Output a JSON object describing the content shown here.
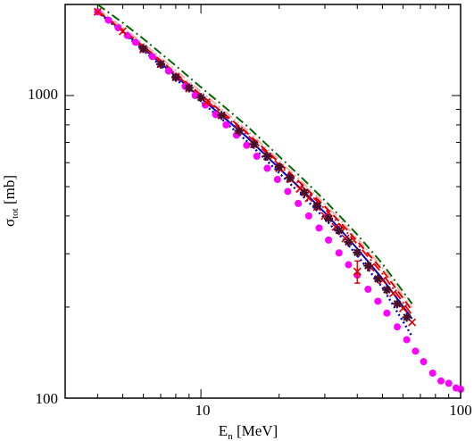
{
  "chart_data": {
    "type": "line",
    "x_scale": "log",
    "y_scale": "log",
    "xlim": [
      3,
      100
    ],
    "ylim": [
      100,
      2000
    ],
    "x_ticks": [
      10,
      100
    ],
    "y_ticks": [
      100,
      1000
    ],
    "x_tick_labels": [
      "10",
      "100"
    ],
    "y_tick_labels": [
      "100",
      "1000"
    ],
    "xlabel": {
      "main": "E",
      "sub": "n",
      "rest": " [MeV]"
    },
    "ylabel": {
      "main": "σ",
      "sub": "tot",
      "rest": " [mb]"
    },
    "grid": false,
    "legend": "none",
    "series": [
      {
        "style": "solid",
        "color": "#0000cc",
        "x": [
          4,
          5,
          6,
          7,
          8,
          10,
          12,
          15,
          20,
          25,
          30,
          35,
          40,
          50,
          65
        ],
        "y": [
          1900,
          1630,
          1430,
          1280,
          1160,
          980,
          860,
          730,
          575,
          480,
          410,
          355,
          312,
          248,
          183
        ]
      },
      {
        "style": "dotted",
        "color": "#0000cc",
        "x": [
          4,
          5,
          6,
          7,
          8,
          10,
          12,
          15,
          20,
          25,
          30,
          35,
          40,
          50,
          65
        ],
        "y": [
          1890,
          1615,
          1410,
          1255,
          1135,
          955,
          838,
          708,
          555,
          460,
          392,
          338,
          296,
          232,
          160
        ]
      },
      {
        "style": "dashed",
        "color": "#cc0000",
        "x": [
          4,
          5,
          6,
          7,
          8,
          10,
          12,
          15,
          20,
          25,
          30,
          35,
          40,
          50,
          65
        ],
        "y": [
          1910,
          1650,
          1455,
          1305,
          1185,
          1005,
          885,
          755,
          600,
          500,
          430,
          375,
          330,
          265,
          195
        ]
      },
      {
        "style": "dash-dot",
        "color": "#ff0000",
        "x": [
          4,
          5,
          6,
          7,
          8,
          10,
          12,
          15,
          20,
          25,
          30,
          35,
          40,
          50,
          65
        ],
        "y": [
          1905,
          1640,
          1445,
          1295,
          1175,
          995,
          875,
          745,
          590,
          492,
          422,
          367,
          323,
          258,
          188
        ]
      },
      {
        "style": "dash-dot",
        "color": "#006600",
        "x": [
          4,
          5,
          6,
          7,
          8,
          10,
          12,
          15,
          20,
          25,
          30,
          35,
          40,
          50,
          65
        ],
        "y": [
          2000,
          1740,
          1540,
          1380,
          1255,
          1065,
          935,
          795,
          630,
          525,
          450,
          392,
          347,
          278,
          205
        ]
      },
      {
        "style": "dash-dot-dot",
        "color": "#ffaaaa",
        "x": [
          4,
          5,
          6,
          7,
          8,
          10,
          12,
          15,
          20,
          25,
          30,
          35,
          40,
          50,
          65
        ],
        "y": [
          1940,
          1680,
          1485,
          1335,
          1210,
          1030,
          905,
          770,
          612,
          510,
          438,
          381,
          337,
          270,
          199
        ]
      },
      {
        "style": "markers",
        "marker": "circle",
        "color": "#ff00ff",
        "x": [
          4,
          4.4,
          4.8,
          5.2,
          5.6,
          6,
          6.5,
          7,
          7.5,
          8,
          8.7,
          9.5,
          10.4,
          11.4,
          12.5,
          13.7,
          15,
          16.4,
          18,
          19.7,
          21.6,
          23.7,
          26,
          28.5,
          31,
          34,
          37,
          40,
          44,
          48,
          52,
          57,
          62,
          67,
          72,
          78,
          84,
          90,
          96,
          100
        ],
        "y": [
          1890,
          1775,
          1675,
          1580,
          1500,
          1425,
          1345,
          1270,
          1205,
          1145,
          1072,
          1000,
          930,
          865,
          800,
          740,
          685,
          630,
          575,
          528,
          482,
          440,
          400,
          365,
          333,
          302,
          276,
          255,
          229,
          209,
          191,
          172,
          156,
          143,
          132,
          121,
          114,
          112,
          108,
          107
        ]
      },
      {
        "style": "markers",
        "marker": "x",
        "color": "#dd0000",
        "x": [
          4,
          5,
          6,
          7,
          8,
          9,
          10.5,
          12,
          14,
          16,
          18,
          20,
          22,
          24,
          26,
          28,
          30,
          33,
          36,
          40,
          45,
          50,
          55,
          60,
          65
        ],
        "y": [
          1890,
          1630,
          1420,
          1270,
          1150,
          1055,
          950,
          860,
          765,
          690,
          630,
          575,
          530,
          492,
          458,
          428,
          400,
          368,
          337,
          262,
          270,
          245,
          222,
          198,
          178
        ],
        "err": [
          0,
          0,
          0,
          0,
          0,
          0,
          0,
          0,
          0,
          0,
          0,
          0,
          0,
          0,
          0,
          0,
          0,
          0,
          0,
          22,
          0,
          0,
          0,
          0,
          0
        ]
      },
      {
        "style": "markers",
        "marker": "plus",
        "color": "#4a0f2a",
        "x": [
          6,
          7,
          8,
          9,
          10,
          12,
          14,
          16,
          18,
          20,
          22,
          25,
          28,
          31,
          34,
          37,
          40,
          44,
          48,
          52,
          57,
          62
        ],
        "y": [
          1430,
          1270,
          1150,
          1060,
          985,
          860,
          765,
          690,
          630,
          580,
          535,
          478,
          432,
          392,
          358,
          328,
          303,
          274,
          248,
          228,
          205,
          185
        ]
      }
    ]
  }
}
